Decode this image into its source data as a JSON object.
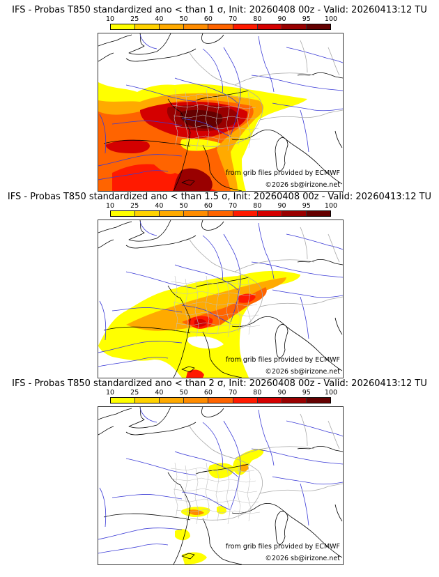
{
  "colorbar": {
    "labels": [
      "10",
      "25",
      "40",
      "50",
      "60",
      "70",
      "80",
      "90",
      "95",
      "100"
    ],
    "colors": [
      "#ffff00",
      "#ffd200",
      "#ffaa00",
      "#ff8c00",
      "#ff6400",
      "#ff1a00",
      "#d40000",
      "#990000",
      "#640000"
    ]
  },
  "panels": [
    {
      "title": "IFS - Probas T850  standardized ano < than 1 σ, Init: 20260408 00z - Valid: 20260413:12 TU",
      "source": "from grib files provided by ECMWF",
      "copyright": "©2026 sb@irizone.net",
      "intensity": "high"
    },
    {
      "title": "IFS - Probas T850  standardized ano < than 1.5 σ, Init: 20260408 00z - Valid: 20260413:12 TU",
      "source": "from grib files provided by ECMWF",
      "copyright": "©2026 sb@irizone.net",
      "intensity": "medium"
    },
    {
      "title": "IFS - Probas T850  standardized ano < than 2 σ, Init: 20260408 00z - Valid: 20260413:12 TU",
      "source": "from grib files provided by ECMWF",
      "copyright": "©2026 sb@irizone.net",
      "intensity": "low"
    }
  ]
}
